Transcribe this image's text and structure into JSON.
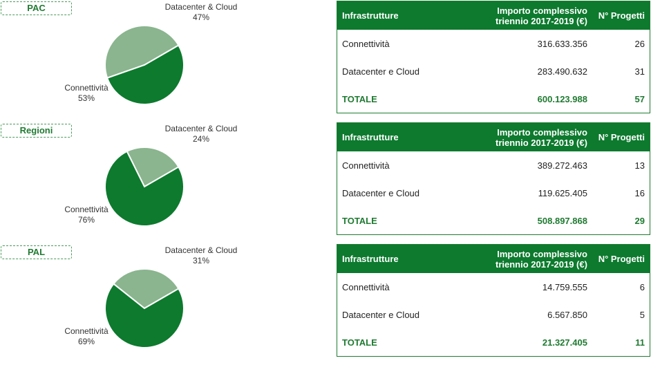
{
  "chart_data": [
    {
      "type": "pie",
      "tag": "PAC",
      "slices": [
        {
          "label": "Datacenter & Cloud",
          "pct_label": "47%",
          "value": 47,
          "color": "#8ab58e"
        },
        {
          "label": "Connettività",
          "pct_label": "53%",
          "value": 53,
          "color": "#0d7a2e"
        }
      ]
    },
    {
      "type": "pie",
      "tag": "Regioni",
      "slices": [
        {
          "label": "Datacenter & Cloud",
          "pct_label": "24%",
          "value": 24,
          "color": "#8ab58e"
        },
        {
          "label": "Connettività",
          "pct_label": "76%",
          "value": 76,
          "color": "#0d7a2e"
        }
      ]
    },
    {
      "type": "pie",
      "tag": "PAL",
      "slices": [
        {
          "label": "Datacenter & Cloud",
          "pct_label": "31%",
          "value": 31,
          "color": "#8ab58e"
        },
        {
          "label": "Connettività",
          "pct_label": "69%",
          "value": 69,
          "color": "#0d7a2e"
        }
      ]
    }
  ],
  "tables": [
    {
      "headers": [
        "Infrastrutture",
        "Importo complessivo triennio 2017-2019  (€)",
        "N° Progetti"
      ],
      "rows": [
        [
          "Connettività",
          "316.633.356",
          "26"
        ],
        [
          "Datacenter e Cloud",
          "283.490.632",
          "31"
        ],
        [
          "TOTALE",
          "600.123.988",
          "57"
        ]
      ]
    },
    {
      "headers": [
        "Infrastrutture",
        "Importo complessivo triennio 2017-2019  (€)",
        "N° Progetti"
      ],
      "rows": [
        [
          "Connettività",
          "389.272.463",
          "13"
        ],
        [
          "Datacenter e Cloud",
          "119.625.405",
          "16"
        ],
        [
          "TOTALE",
          "508.897.868",
          "29"
        ]
      ]
    },
    {
      "headers": [
        "Infrastrutture",
        "Importo complessivo triennio 2017-2019  (€)",
        "N° Progetti"
      ],
      "rows": [
        [
          "Connettività",
          "14.759.555",
          "6"
        ],
        [
          "Datacenter e Cloud",
          "6.567.850",
          "5"
        ],
        [
          "TOTALE",
          "21.327.405",
          "11"
        ]
      ]
    }
  ]
}
